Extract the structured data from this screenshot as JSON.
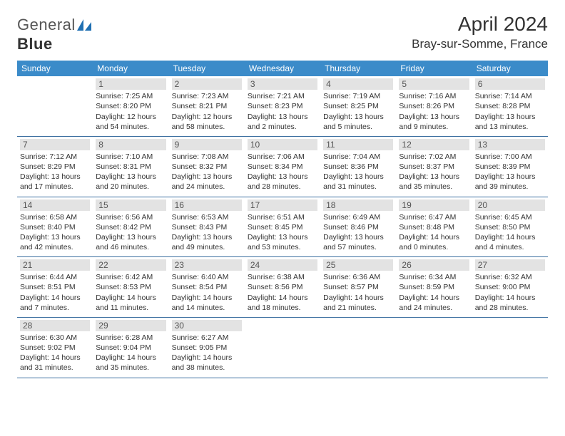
{
  "logo": {
    "text1": "General",
    "text2": "Blue"
  },
  "title": "April 2024",
  "location": "Bray-sur-Somme, France",
  "colors": {
    "header_bg": "#3b8bc9",
    "header_text": "#ffffff",
    "daynum_bg": "#e3e3e3",
    "daynum_text": "#555555",
    "row_border": "#3b6fa0",
    "body_text": "#333333",
    "logo_accent": "#1f6fb2"
  },
  "weekdays": [
    "Sunday",
    "Monday",
    "Tuesday",
    "Wednesday",
    "Thursday",
    "Friday",
    "Saturday"
  ],
  "weeks": [
    [
      null,
      {
        "n": "1",
        "sr": "7:25 AM",
        "ss": "8:20 PM",
        "dl": "12 hours and 54 minutes."
      },
      {
        "n": "2",
        "sr": "7:23 AM",
        "ss": "8:21 PM",
        "dl": "12 hours and 58 minutes."
      },
      {
        "n": "3",
        "sr": "7:21 AM",
        "ss": "8:23 PM",
        "dl": "13 hours and 2 minutes."
      },
      {
        "n": "4",
        "sr": "7:19 AM",
        "ss": "8:25 PM",
        "dl": "13 hours and 5 minutes."
      },
      {
        "n": "5",
        "sr": "7:16 AM",
        "ss": "8:26 PM",
        "dl": "13 hours and 9 minutes."
      },
      {
        "n": "6",
        "sr": "7:14 AM",
        "ss": "8:28 PM",
        "dl": "13 hours and 13 minutes."
      }
    ],
    [
      {
        "n": "7",
        "sr": "7:12 AM",
        "ss": "8:29 PM",
        "dl": "13 hours and 17 minutes."
      },
      {
        "n": "8",
        "sr": "7:10 AM",
        "ss": "8:31 PM",
        "dl": "13 hours and 20 minutes."
      },
      {
        "n": "9",
        "sr": "7:08 AM",
        "ss": "8:32 PM",
        "dl": "13 hours and 24 minutes."
      },
      {
        "n": "10",
        "sr": "7:06 AM",
        "ss": "8:34 PM",
        "dl": "13 hours and 28 minutes."
      },
      {
        "n": "11",
        "sr": "7:04 AM",
        "ss": "8:36 PM",
        "dl": "13 hours and 31 minutes."
      },
      {
        "n": "12",
        "sr": "7:02 AM",
        "ss": "8:37 PM",
        "dl": "13 hours and 35 minutes."
      },
      {
        "n": "13",
        "sr": "7:00 AM",
        "ss": "8:39 PM",
        "dl": "13 hours and 39 minutes."
      }
    ],
    [
      {
        "n": "14",
        "sr": "6:58 AM",
        "ss": "8:40 PM",
        "dl": "13 hours and 42 minutes."
      },
      {
        "n": "15",
        "sr": "6:56 AM",
        "ss": "8:42 PM",
        "dl": "13 hours and 46 minutes."
      },
      {
        "n": "16",
        "sr": "6:53 AM",
        "ss": "8:43 PM",
        "dl": "13 hours and 49 minutes."
      },
      {
        "n": "17",
        "sr": "6:51 AM",
        "ss": "8:45 PM",
        "dl": "13 hours and 53 minutes."
      },
      {
        "n": "18",
        "sr": "6:49 AM",
        "ss": "8:46 PM",
        "dl": "13 hours and 57 minutes."
      },
      {
        "n": "19",
        "sr": "6:47 AM",
        "ss": "8:48 PM",
        "dl": "14 hours and 0 minutes."
      },
      {
        "n": "20",
        "sr": "6:45 AM",
        "ss": "8:50 PM",
        "dl": "14 hours and 4 minutes."
      }
    ],
    [
      {
        "n": "21",
        "sr": "6:44 AM",
        "ss": "8:51 PM",
        "dl": "14 hours and 7 minutes."
      },
      {
        "n": "22",
        "sr": "6:42 AM",
        "ss": "8:53 PM",
        "dl": "14 hours and 11 minutes."
      },
      {
        "n": "23",
        "sr": "6:40 AM",
        "ss": "8:54 PM",
        "dl": "14 hours and 14 minutes."
      },
      {
        "n": "24",
        "sr": "6:38 AM",
        "ss": "8:56 PM",
        "dl": "14 hours and 18 minutes."
      },
      {
        "n": "25",
        "sr": "6:36 AM",
        "ss": "8:57 PM",
        "dl": "14 hours and 21 minutes."
      },
      {
        "n": "26",
        "sr": "6:34 AM",
        "ss": "8:59 PM",
        "dl": "14 hours and 24 minutes."
      },
      {
        "n": "27",
        "sr": "6:32 AM",
        "ss": "9:00 PM",
        "dl": "14 hours and 28 minutes."
      }
    ],
    [
      {
        "n": "28",
        "sr": "6:30 AM",
        "ss": "9:02 PM",
        "dl": "14 hours and 31 minutes."
      },
      {
        "n": "29",
        "sr": "6:28 AM",
        "ss": "9:04 PM",
        "dl": "14 hours and 35 minutes."
      },
      {
        "n": "30",
        "sr": "6:27 AM",
        "ss": "9:05 PM",
        "dl": "14 hours and 38 minutes."
      },
      null,
      null,
      null,
      null
    ]
  ],
  "labels": {
    "sunrise": "Sunrise:",
    "sunset": "Sunset:",
    "daylight": "Daylight:"
  }
}
